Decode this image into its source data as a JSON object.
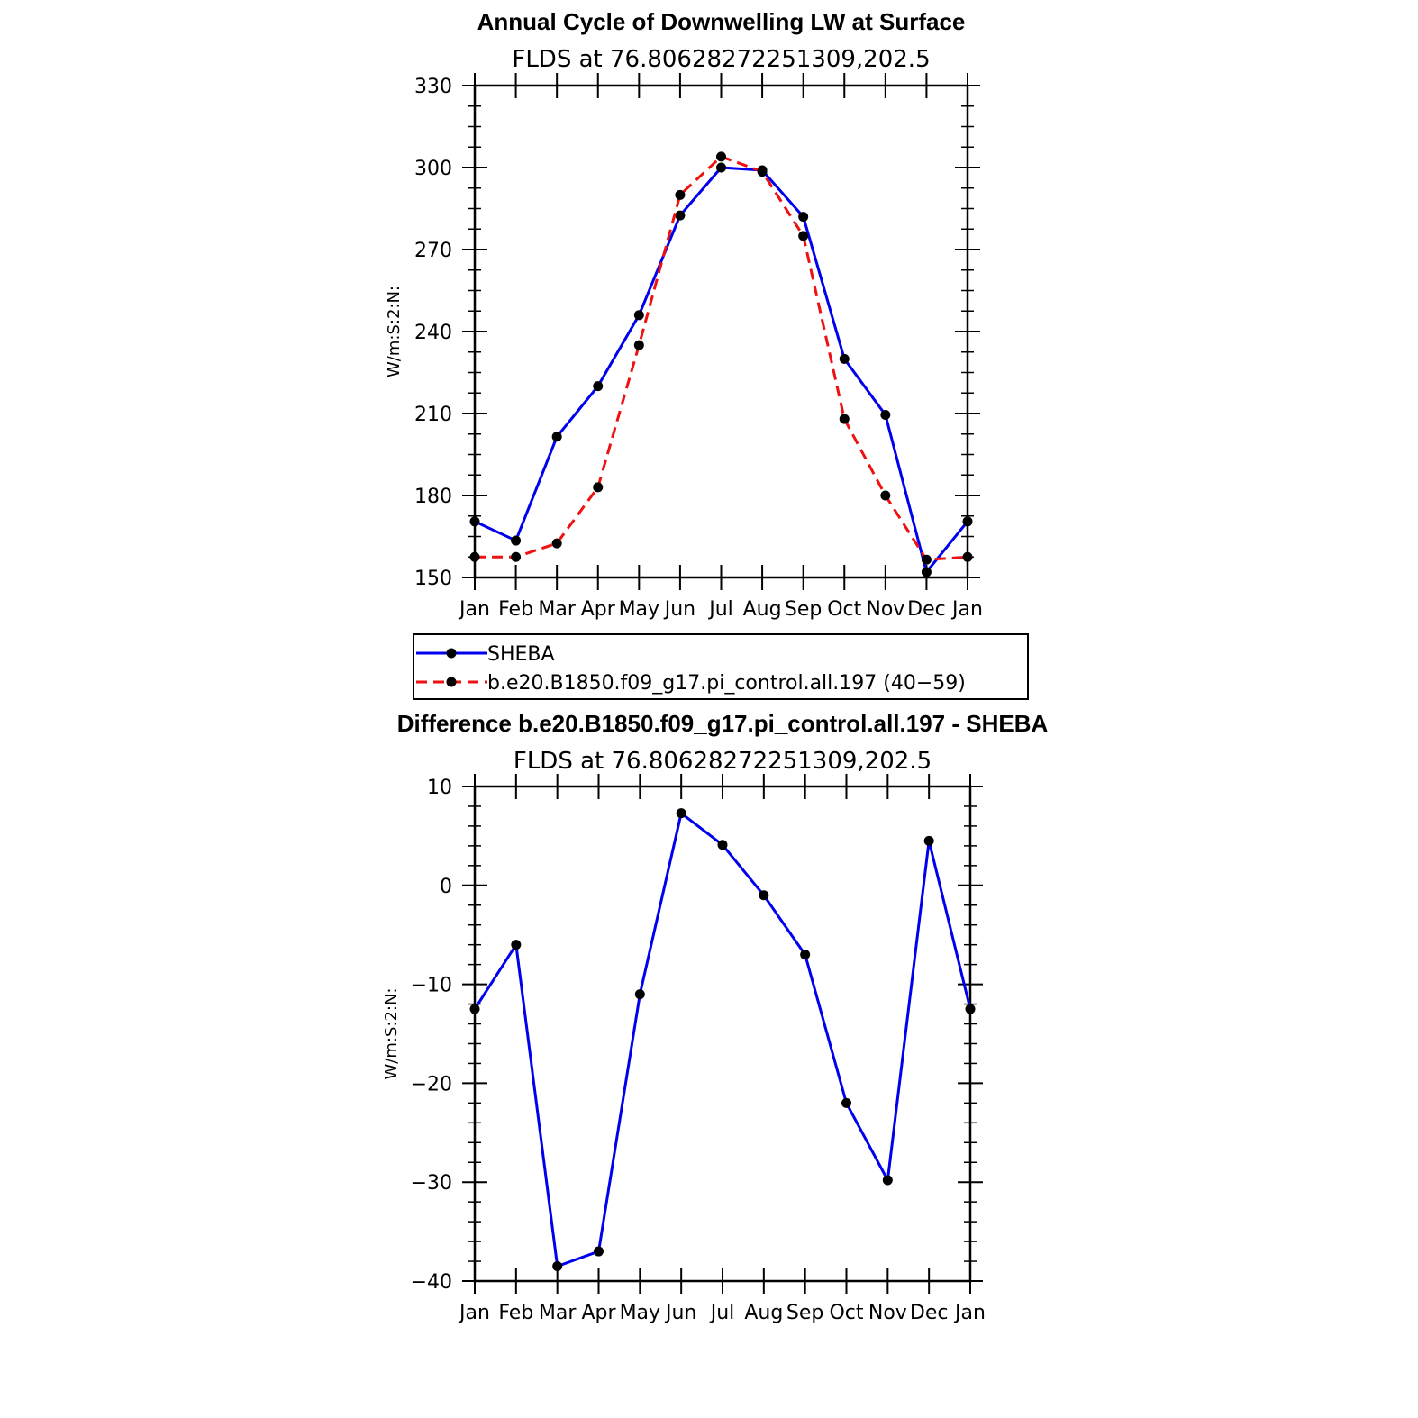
{
  "chart_data": [
    {
      "type": "line",
      "title": "Annual Cycle of Downwelling LW at Surface",
      "subtitle": "FLDS at 76.80628272251309,202.5",
      "xlabel": "",
      "ylabel": "W/m:S:2:N:",
      "categories": [
        "Jan",
        "Feb",
        "Mar",
        "Apr",
        "May",
        "Jun",
        "Jul",
        "Aug",
        "Sep",
        "Oct",
        "Nov",
        "Dec",
        "Jan"
      ],
      "ylim": [
        150,
        330
      ],
      "yticks": [
        "150",
        "180",
        "210",
        "240",
        "270",
        "300",
        "330"
      ],
      "grid": false,
      "legend_position": "bottom",
      "series": [
        {
          "name": "SHEBA",
          "color": "#0000ee",
          "line_style": "solid",
          "marker": "filled-circle",
          "values": [
            170.5,
            163.5,
            201.5,
            220,
            246,
            282.5,
            300,
            299,
            282,
            230,
            209.5,
            152,
            170.5
          ]
        },
        {
          "name": "b.e20.B1850.f09_g17.pi_control.all.197 (40−59)",
          "color": "#ee1111",
          "line_style": "dashed",
          "marker": "filled-circle",
          "values": [
            157.5,
            157.5,
            162.5,
            183,
            235,
            290,
            304,
            298.5,
            275,
            208,
            180,
            156.5,
            157.5
          ]
        }
      ]
    },
    {
      "type": "line",
      "title": "Difference b.e20.B1850.f09_g17.pi_control.all.197 - SHEBA",
      "subtitle": "FLDS at 76.80628272251309,202.5",
      "xlabel": "",
      "ylabel": "W/m:S:2:N:",
      "categories": [
        "Jan",
        "Feb",
        "Mar",
        "Apr",
        "May",
        "Jun",
        "Jul",
        "Aug",
        "Sep",
        "Oct",
        "Nov",
        "Dec",
        "Jan"
      ],
      "ylim": [
        -40,
        10
      ],
      "yticks": [
        "−40",
        "−30",
        "−20",
        "−10",
        "0",
        "10"
      ],
      "grid": false,
      "series": [
        {
          "color": "#0000ee",
          "line_style": "solid",
          "marker": "filled-circle",
          "values": [
            -12.5,
            -6,
            -38.5,
            -37,
            -11,
            7.3,
            4.1,
            -1,
            -7,
            -22,
            -29.8,
            4.5,
            -12.5
          ]
        }
      ]
    }
  ]
}
